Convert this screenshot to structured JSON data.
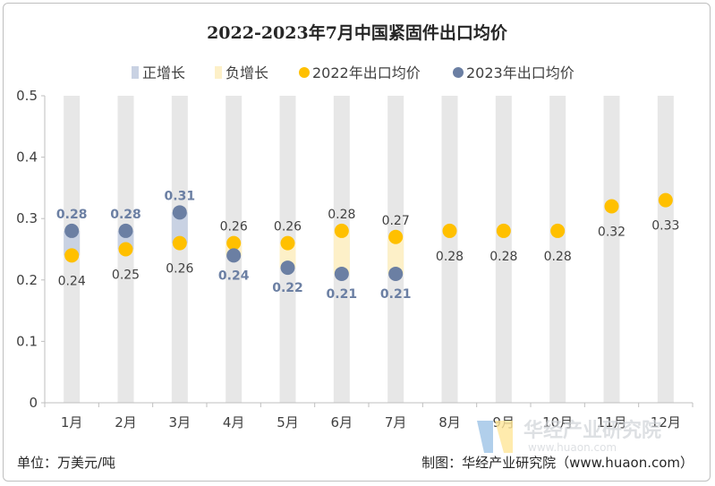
{
  "chart_data": {
    "type": "scatter",
    "title": "2022-2023年7月中国紧固件出口均价",
    "categories": [
      "1月",
      "2月",
      "3月",
      "4月",
      "5月",
      "6月",
      "7月",
      "8月",
      "9月",
      "10月",
      "11月",
      "12月"
    ],
    "y_ticks": [
      "0",
      "0.1",
      "0.2",
      "0.3",
      "0.4",
      "0.5"
    ],
    "ylim": [
      0,
      0.5
    ],
    "legend_position": "top",
    "series": [
      {
        "name": "2022年出口均价",
        "color": "#ffc000",
        "values": [
          0.24,
          0.25,
          0.26,
          0.26,
          0.26,
          0.28,
          0.27,
          0.28,
          0.28,
          0.28,
          0.32,
          0.33
        ]
      },
      {
        "name": "2023年出口均价",
        "color": "#6b7fa3",
        "values": [
          0.28,
          0.28,
          0.31,
          0.24,
          0.22,
          0.21,
          0.21,
          null,
          null,
          null,
          null,
          null
        ]
      }
    ],
    "labels_2022": [
      "0.24",
      "0.25",
      "0.26",
      "0.26",
      "0.26",
      "0.28",
      "0.27",
      "0.28",
      "0.28",
      "0.28",
      "0.32",
      "0.33"
    ],
    "labels_2023": [
      "0.28",
      "0.28",
      "0.31",
      "0.24",
      "0.22",
      "0.21",
      "0.21"
    ],
    "legend": {
      "pos": "正增长",
      "neg": "负增长",
      "s2022": "2022年出口均价",
      "s2023": "2023年出口均价"
    },
    "colors": {
      "pos": "#c9d2e3",
      "neg": "#fdf0c8",
      "background_bar": "#e7e7e7",
      "axis": "#bfbfbf"
    }
  },
  "footer": {
    "unit": "单位：万美元/吨",
    "source": "制图：华经产业研究院（www.huaon.com）"
  },
  "watermark": {
    "text": "华经产业研究院",
    "url": "www.huaon.com"
  }
}
